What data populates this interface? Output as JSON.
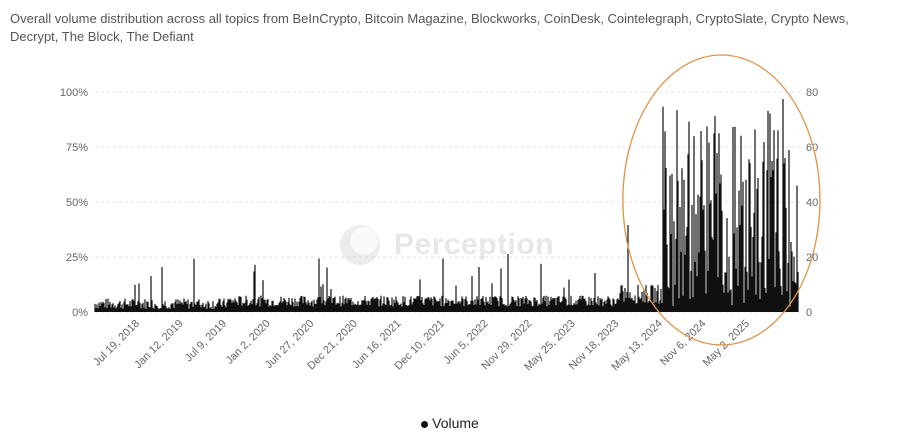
{
  "chart_data": {
    "type": "bar",
    "title": "Overall volume distribution across all topics from BeInCrypto, Bitcoin Magazine, Blockworks, CoinDesk, Cointelegraph, CryptoSlate, Crypto News, Decrypt, The Block, The Defiant",
    "watermark": "Perception",
    "legend": {
      "position": "bottom-center",
      "entries": [
        "Volume"
      ]
    },
    "y_left_ticks": [
      "0%",
      "25%",
      "50%",
      "75%",
      "100%"
    ],
    "y_right_ticks": [
      "0",
      "20",
      "40",
      "60",
      "80"
    ],
    "y_right_range": [
      0,
      80
    ],
    "x_ticks": [
      "Jul 19, 2018",
      "Jan 12, 2019",
      "Jul 9, 2019",
      "Jan 2, 2020",
      "Jun 27, 2020",
      "Dec 21, 2020",
      "Jun 16, 2021",
      "Dec 10, 2021",
      "Jun 5, 2022",
      "Nov 29, 2022",
      "May 25, 2023",
      "Nov 18, 2023",
      "May 13, 2024",
      "Nov 6, 2024",
      "May 2, 2025"
    ],
    "grid": true,
    "series": [
      {
        "name": "Volume",
        "color": "#111111",
        "segments": [
          {
            "from": "Jul 19, 2018",
            "to": "Jul 9, 2019",
            "typical": [
              1,
              5
            ],
            "peak": 20
          },
          {
            "from": "Jul 9, 2019",
            "to": "Dec 21, 2020",
            "typical": [
              2,
              6
            ],
            "peak": 24
          },
          {
            "from": "Dec 21, 2020",
            "to": "Nov 18, 2023",
            "typical": [
              2,
              6
            ],
            "peak": 23
          },
          {
            "from": "Nov 18, 2023",
            "to": "May 13, 2024",
            "typical": [
              3,
              10
            ],
            "peak": 36
          },
          {
            "from": "May 13, 2024",
            "to": "May 2, 2025",
            "typical": [
              5,
              70
            ],
            "peak": 78
          }
        ]
      }
    ],
    "annotation": {
      "shape": "ellipse",
      "color": "#e0954c",
      "around": "Nov 6, 2024 - May 2, 2025"
    }
  }
}
